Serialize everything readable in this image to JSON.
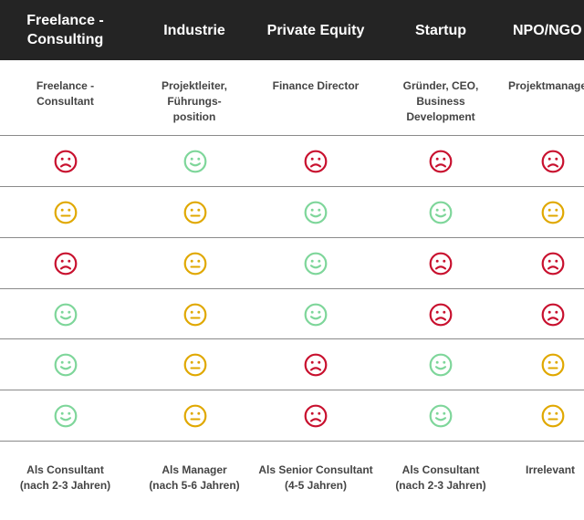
{
  "colors": {
    "header_bg": "#242424",
    "sad": "#c8102e",
    "neutral": "#e0a800",
    "happy": "#7ed69a"
  },
  "columns": [
    {
      "title": "Freelance - Consulting",
      "title_lines": [
        "Freelance -",
        "Consulting"
      ],
      "role_lines": [
        "Freelance -",
        "Consultant"
      ],
      "footer_lines": [
        "Als Consultant",
        "(nach 2-3 Jahren)"
      ]
    },
    {
      "title": "Industrie",
      "title_lines": [
        "Industrie"
      ],
      "role_lines": [
        "Projektleiter,",
        "Führungs-",
        "position"
      ],
      "footer_lines": [
        "Als Manager",
        "(nach 5-6 Jahren)"
      ]
    },
    {
      "title": "Private Equity",
      "title_lines": [
        "Private Equity"
      ],
      "role_lines": [
        "Finance Director"
      ],
      "footer_lines": [
        "Als Senior Consultant",
        "(4-5 Jahren)"
      ]
    },
    {
      "title": "Startup",
      "title_lines": [
        "Startup"
      ],
      "role_lines": [
        "Gründer, CEO,",
        "Business",
        "Development"
      ],
      "footer_lines": [
        "Als Consultant",
        "(nach 2-3 Jahren)"
      ]
    },
    {
      "title": "NPO/NGO",
      "title_lines": [
        "NPO/NGO"
      ],
      "role_lines": [
        "Projektmanager"
      ],
      "footer_lines": [
        "Irrelevant"
      ]
    }
  ],
  "rows": [
    [
      "sad",
      "happy",
      "sad",
      "sad",
      "sad"
    ],
    [
      "neutral",
      "neutral",
      "happy",
      "happy",
      "neutral"
    ],
    [
      "sad",
      "neutral",
      "happy",
      "sad",
      "sad"
    ],
    [
      "happy",
      "neutral",
      "happy",
      "sad",
      "sad"
    ],
    [
      "happy",
      "neutral",
      "sad",
      "happy",
      "neutral"
    ],
    [
      "happy",
      "neutral",
      "sad",
      "happy",
      "neutral"
    ]
  ]
}
